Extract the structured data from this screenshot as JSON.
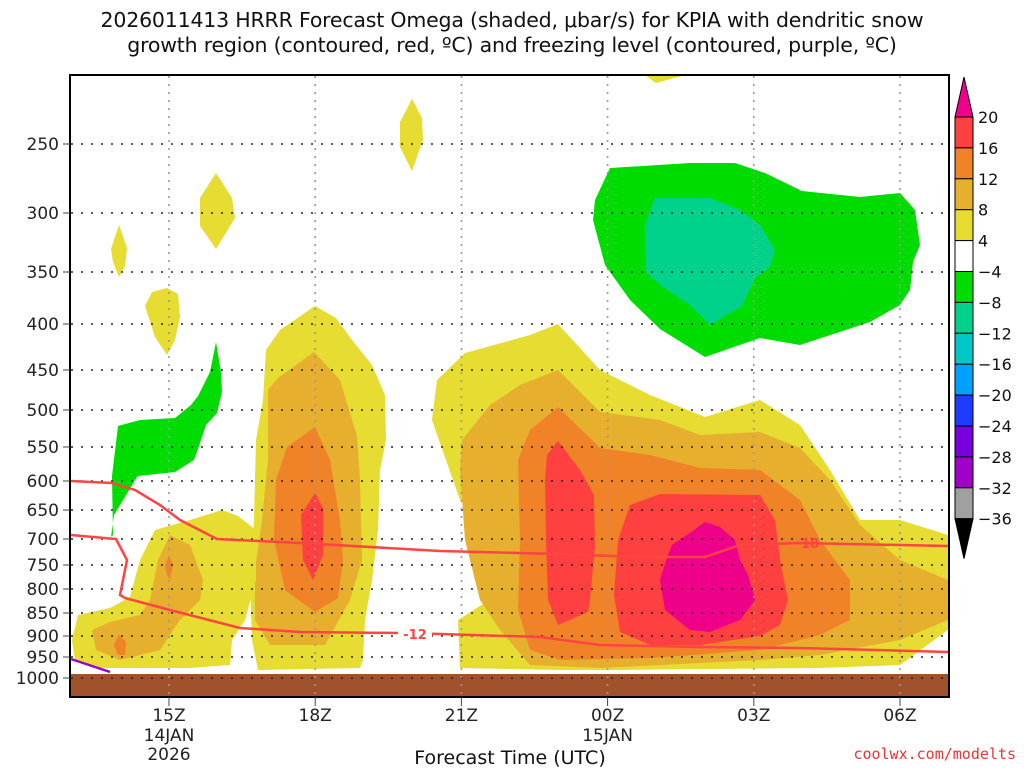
{
  "title": {
    "line1": "2026011413 HRRR Forecast Omega (shaded, μbar/s) for KPIA with dendritic snow",
    "line2": "growth region (contoured, red, ºC) and freezing level (contoured, purple, ºC)"
  },
  "credit": "coolwx.com/modelts",
  "chart_data": {
    "type": "heatmap",
    "title": "2026011413 HRRR Forecast Omega (shaded, μbar/s) for KPIA with dendritic snow growth region (contoured, red, ºC) and freezing level (contoured, purple, ºC)",
    "xlabel": "Forecast Time (UTC)",
    "ylabel": "",
    "x_ticks": [
      {
        "label": "15Z",
        "sub1": "14JAN",
        "sub2": "2026",
        "hour": 15
      },
      {
        "label": "18Z",
        "sub1": "",
        "sub2": "",
        "hour": 18
      },
      {
        "label": "21Z",
        "sub1": "",
        "sub2": "",
        "hour": 21
      },
      {
        "label": "00Z",
        "sub1": "15JAN",
        "sub2": "",
        "hour": 24
      },
      {
        "label": "03Z",
        "sub1": "",
        "sub2": "",
        "hour": 27
      },
      {
        "label": "06Z",
        "sub1": "",
        "sub2": "",
        "hour": 30
      }
    ],
    "x_range_hours": [
      13,
      31
    ],
    "y_ticks": [
      250,
      300,
      350,
      400,
      450,
      500,
      550,
      600,
      650,
      700,
      750,
      800,
      850,
      900,
      950,
      1000
    ],
    "y_axis": "pressure (hPa), inverted",
    "grid": true,
    "colorbar": {
      "levels": [
        20,
        16,
        12,
        8,
        4,
        -4,
        -8,
        -12,
        -16,
        -20,
        -24,
        -28,
        -32,
        -36
      ],
      "colors": [
        "#ee0088",
        "#ff4040",
        "#f08228",
        "#e6af2d",
        "#e6dc32",
        "#ffffff",
        "#00dc00",
        "#00d28c",
        "#00c8c8",
        "#00a0ff",
        "#1e3cff",
        "#7800dc",
        "#a000c8",
        "#a0a0a0",
        "#000000"
      ],
      "units": "μbar/s"
    },
    "ground_color": "#a0522d",
    "contours": [
      {
        "name": "dendritic-upper (-12C)",
        "color": "#ff4444",
        "label": "",
        "points": [
          [
            13,
            603
          ],
          [
            14.3,
            606
          ],
          [
            15,
            632
          ],
          [
            16,
            693
          ],
          [
            17,
            700
          ],
          [
            20,
            718
          ],
          [
            24,
            730
          ],
          [
            26,
            730
          ],
          [
            27,
            722
          ],
          [
            28,
            718
          ],
          [
            31,
            720
          ]
        ]
      },
      {
        "name": "dendritic-lower (-12C) / -18 label",
        "color": "#ff4444",
        "label": "-18",
        "label_at": [
          28.1,
          715
        ]
      },
      {
        "name": "dendritic-lower-left",
        "color": "#ff4444",
        "label": "-12",
        "label_at": [
          20.1,
          893
        ],
        "points": [
          [
            13,
            692
          ],
          [
            14.2,
            698
          ],
          [
            14.4,
            760
          ],
          [
            14.2,
            812
          ],
          [
            15.5,
            845
          ],
          [
            17,
            885
          ],
          [
            19,
            890
          ],
          [
            22,
            893
          ],
          [
            24,
            900
          ],
          [
            27,
            918
          ],
          [
            31,
            947
          ]
        ]
      },
      {
        "name": "freezing level",
        "color": "#9900cc",
        "points": [
          [
            13,
            955
          ],
          [
            13.8,
            975
          ]
        ]
      }
    ],
    "omega_features": [
      {
        "desc": "positive 4-8 area 18Z 400-1000 hPa with max 16-20 near 700 hPa",
        "max": 20
      },
      {
        "desc": "large positive area 22Z-07Z 420-1000 hPa; max >20 near 800 hPa around 02Z",
        "max": 24
      },
      {
        "desc": "negative -4 to -8 area 00Z-06Z 260-440 hPa with -8 to -12 core near 320 hPa",
        "min": -12
      },
      {
        "desc": "negative -4 to -8 sliver 14Z-16Z 450-690 hPa",
        "min": -8
      }
    ]
  }
}
